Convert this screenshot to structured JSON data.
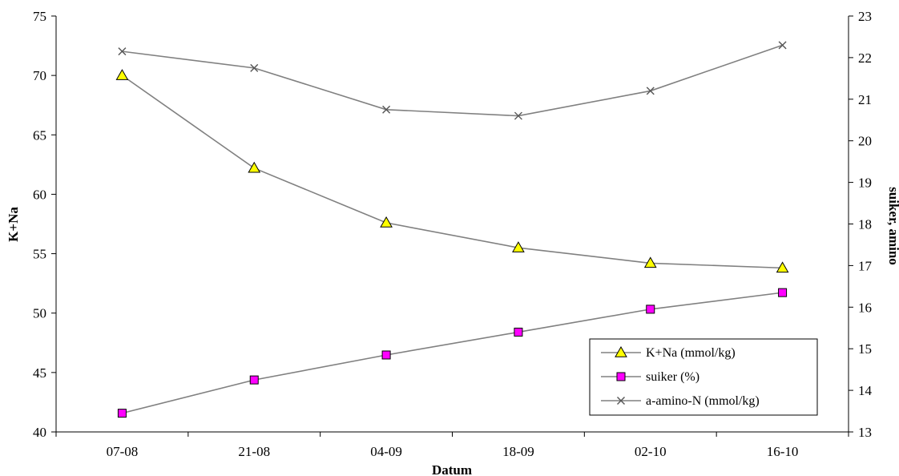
{
  "chart_data": {
    "type": "line",
    "title": "",
    "xlabel": "Datum",
    "ylabel_left": "K+Na",
    "ylabel_right": "suiker, amino",
    "categories": [
      "07-08",
      "21-08",
      "04-09",
      "18-09",
      "02-10",
      "16-10"
    ],
    "ylim_left": [
      40,
      75
    ],
    "yticks_left": [
      40,
      45,
      50,
      55,
      60,
      65,
      70,
      75
    ],
    "ylim_right": [
      13,
      23
    ],
    "yticks_right": [
      13,
      14,
      15,
      16,
      17,
      18,
      19,
      20,
      21,
      22,
      23
    ],
    "grid": false,
    "legend_position": "bottom-right",
    "series": [
      {
        "name": "K+Na (mmol/kg)",
        "axis": "left",
        "marker": "triangle",
        "color": "#ffff00",
        "line_color": "#808080",
        "values": [
          70.0,
          62.2,
          57.6,
          55.5,
          54.2,
          53.8
        ]
      },
      {
        "name": "suiker (%)",
        "axis": "right",
        "marker": "square",
        "color": "#ff00ff",
        "line_color": "#808080",
        "values": [
          13.45,
          14.25,
          14.85,
          15.4,
          15.95,
          16.35
        ]
      },
      {
        "name": "a-amino-N (mmol/kg)",
        "axis": "right",
        "marker": "x",
        "color": "#808080",
        "line_color": "#808080",
        "values": [
          22.15,
          21.75,
          20.75,
          20.6,
          21.2,
          22.3
        ]
      }
    ]
  }
}
